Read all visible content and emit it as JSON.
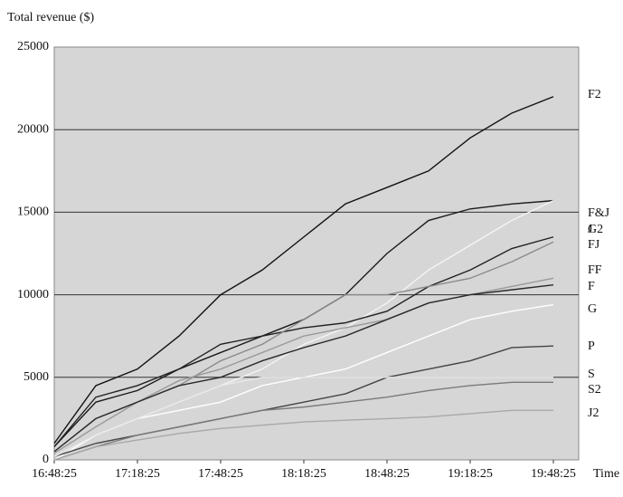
{
  "chart_data": {
    "type": "line",
    "y_label": "Total revenue ($)",
    "x_label": "Time",
    "x": [
      "16:48:25",
      "17:03:25",
      "17:18:25",
      "17:33:25",
      "17:48:25",
      "18:03:25",
      "18:18:25",
      "18:33:25",
      "18:48:25",
      "19:03:25",
      "19:18:25",
      "19:33:25",
      "19:48:25"
    ],
    "xticks": [
      "16:48:25",
      "17:18:25",
      "17:48:25",
      "18:18:25",
      "18:48:25",
      "19:18:25",
      "19:48:25"
    ],
    "ylim": [
      0,
      25000
    ],
    "yticks": [
      0,
      5000,
      10000,
      15000,
      20000,
      25000
    ],
    "grid": true,
    "series": [
      {
        "name": "F2",
        "color": "#111111",
        "values": [
          1000,
          4500,
          5500,
          7500,
          10000,
          11500,
          13500,
          15500,
          16500,
          17500,
          19500,
          21000,
          22000
        ]
      },
      {
        "name": "F&J",
        "color": "#1a1a1a",
        "values": [
          800,
          3500,
          4200,
          5500,
          6500,
          7500,
          8500,
          10000,
          12500,
          14500,
          15200,
          15500,
          15700
        ]
      },
      {
        "name": "G2",
        "color": "#f4f4f4",
        "values": [
          0,
          1500,
          2500,
          3500,
          4500,
          5500,
          7000,
          8000,
          9500,
          11500,
          13000,
          14500,
          15700
        ]
      },
      {
        "name": "J",
        "color": "#222222",
        "values": [
          800,
          3800,
          4500,
          5500,
          7000,
          7500,
          8000,
          8300,
          9000,
          10500,
          11500,
          12800,
          13500
        ]
      },
      {
        "name": "FJ",
        "color": "#8a8a8a",
        "values": [
          500,
          2500,
          3500,
          4500,
          6000,
          7000,
          8500,
          10000,
          10000,
          10500,
          11000,
          12000,
          13200
        ]
      },
      {
        "name": "FF",
        "color": "#9a9a9a",
        "values": [
          400,
          2000,
          3500,
          4800,
          5500,
          6500,
          7500,
          8000,
          8500,
          9500,
          10000,
          10500,
          11000
        ]
      },
      {
        "name": "F",
        "color": "#2a2a2a",
        "values": [
          500,
          2500,
          3500,
          4500,
          5000,
          6000,
          6800,
          7500,
          8500,
          9500,
          10000,
          10300,
          10600
        ]
      },
      {
        "name": "G",
        "color": "#ffffff",
        "values": [
          0,
          1500,
          2500,
          3000,
          3500,
          4500,
          5000,
          5500,
          6500,
          7500,
          8500,
          9000,
          9400
        ]
      },
      {
        "name": "P",
        "color": "#444444",
        "values": [
          200,
          1000,
          1500,
          2000,
          2500,
          3000,
          3500,
          4000,
          5000,
          5500,
          6000,
          6800,
          6900
        ]
      },
      {
        "name": "S",
        "color": "#e8e8e8",
        "values": [
          200,
          1500,
          2500,
          3500,
          4500,
          5000,
          5000,
          5000,
          5000,
          5000,
          5000,
          5000,
          5000
        ]
      },
      {
        "name": "S2",
        "color": "#7a7a7a",
        "values": [
          0,
          800,
          1500,
          2000,
          2500,
          3000,
          3200,
          3500,
          3800,
          4200,
          4500,
          4700,
          4700
        ]
      },
      {
        "name": "J2",
        "color": "#a8a8a8",
        "values": [
          0,
          800,
          1200,
          1600,
          1900,
          2100,
          2300,
          2400,
          2500,
          2600,
          2800,
          3000,
          3000
        ]
      }
    ]
  }
}
